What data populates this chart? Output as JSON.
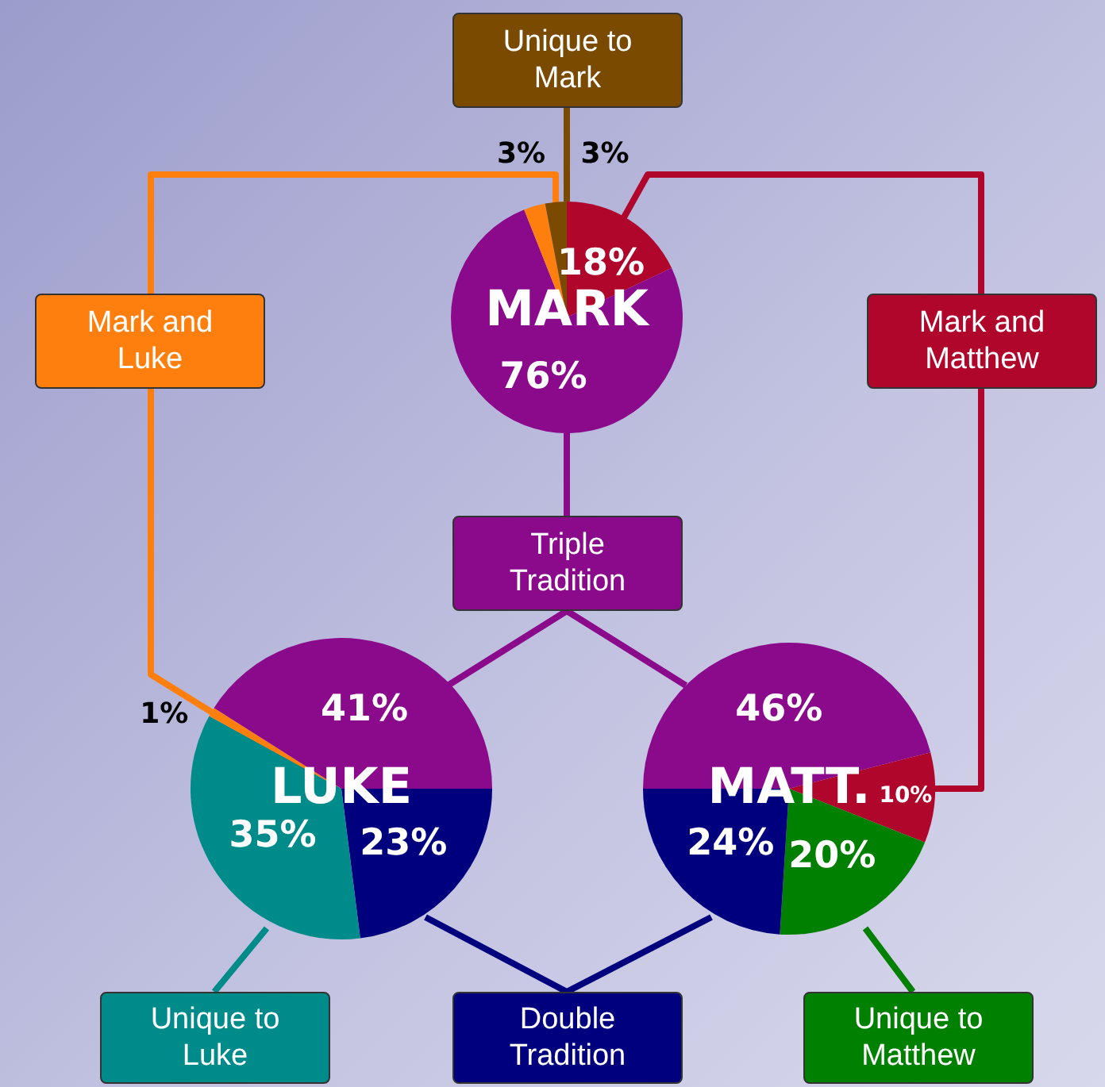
{
  "chart_data": [
    {
      "type": "pie",
      "title": "MARK",
      "categories": [
        null,
        null,
        null,
        null
      ],
      "values": [
        18,
        76,
        3,
        3
      ],
      "colors": [
        "#b0062c",
        "#8b0a8b",
        "#ff7f0e",
        "#7a4a00"
      ],
      "value_labels": [
        "18%",
        "76%",
        "3%",
        "3%"
      ],
      "annotations": [
        "Unique to Mark",
        "Mark and Luke",
        "Mark and Matthew",
        "Triple Tradition"
      ]
    },
    {
      "type": "pie",
      "title": "LUKE",
      "categories": [
        null,
        null,
        null,
        null
      ],
      "values": [
        23,
        35,
        1,
        41
      ],
      "colors": [
        "#00007f",
        "#008b8b",
        "#ff7f0e",
        "#8b0a8b"
      ],
      "value_labels": [
        "23%",
        "35%",
        "1%",
        "41%"
      ],
      "annotations": [
        "Unique to Luke",
        "Double Tradition"
      ]
    },
    {
      "type": "pie",
      "title": "MATT.",
      "categories": [
        null,
        null,
        null,
        null
      ],
      "values": [
        46,
        10,
        20,
        24
      ],
      "colors": [
        "#8b0a8b",
        "#b0062c",
        "#008000",
        "#00007f"
      ],
      "value_labels": [
        "46%",
        "10%",
        "20%",
        "24%"
      ],
      "annotations": [
        "Unique to Matthew"
      ]
    }
  ]
}
